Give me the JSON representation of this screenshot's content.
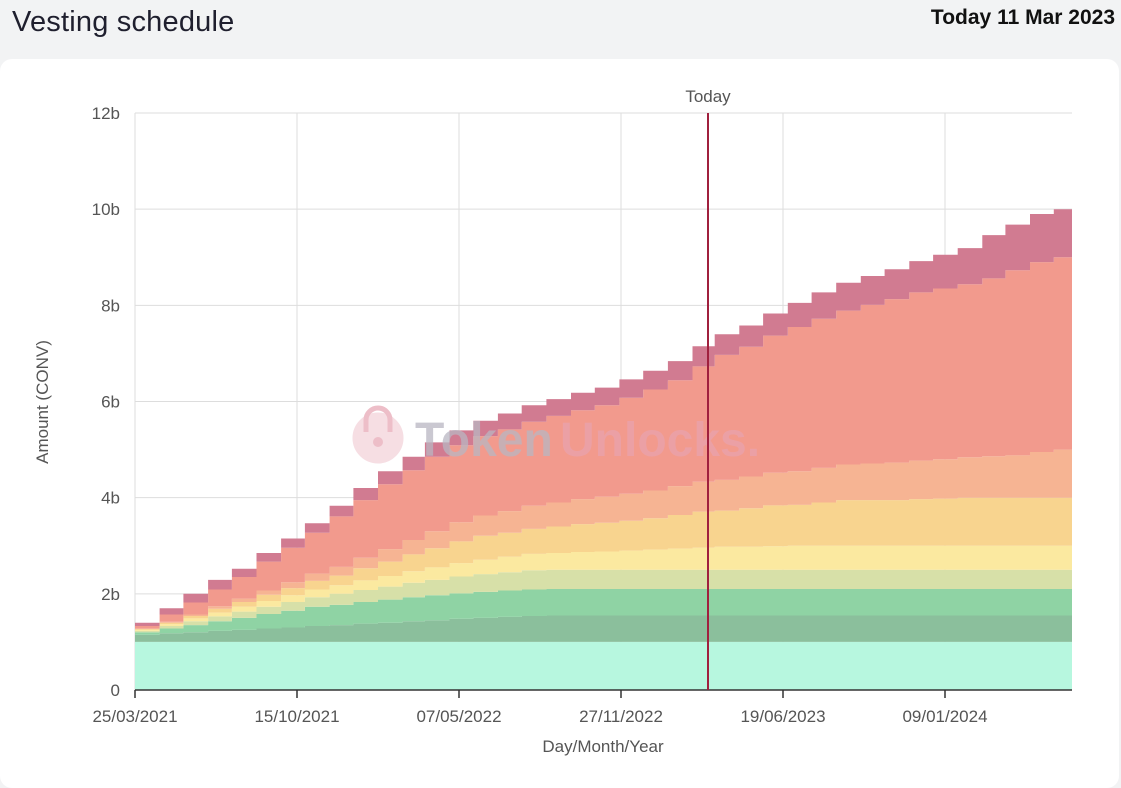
{
  "page": {
    "title": "Vesting schedule",
    "today_prefix": "Today",
    "today_date": "11 Mar 2023"
  },
  "watermark": {
    "part1": "Token",
    "part2": "Unlocks."
  },
  "colors": {
    "series": [
      "#b7f7df",
      "#8bbf9c",
      "#8fd3a4",
      "#d7e0a8",
      "#fbe9a0",
      "#f8d48f",
      "#f6b493",
      "#f29a8d",
      "#d17b91"
    ],
    "today_line": "#a0203e",
    "grid": "#dddddd"
  },
  "chart_data": {
    "type": "area",
    "title": "",
    "xlabel": "Day/Month/Year",
    "ylabel": "Amount (CONV)",
    "ylim": [
      0,
      12
    ],
    "yunit": "b",
    "y_ticks": [
      "0",
      "2b",
      "4b",
      "6b",
      "8b",
      "10b",
      "12b"
    ],
    "x_ticks": [
      "25/03/2021",
      "15/10/2021",
      "07/05/2022",
      "27/11/2022",
      "19/06/2023",
      "09/01/2024"
    ],
    "today_label": "Today",
    "today_date": "11/03/2023",
    "stacked": true,
    "step": true,
    "grid": true,
    "x": [
      "25/03/2021",
      "25/04/2021",
      "25/05/2021",
      "25/06/2021",
      "25/07/2021",
      "25/08/2021",
      "25/09/2021",
      "25/10/2021",
      "25/11/2021",
      "25/12/2021",
      "25/01/2022",
      "25/02/2022",
      "25/03/2022",
      "25/04/2022",
      "25/05/2022",
      "25/06/2022",
      "25/07/2022",
      "25/08/2022",
      "25/09/2022",
      "25/10/2022",
      "25/11/2022",
      "25/12/2022",
      "25/01/2023",
      "25/02/2023",
      "25/03/2023",
      "25/04/2023",
      "25/05/2023",
      "25/06/2023",
      "25/07/2023",
      "25/08/2023",
      "25/09/2023",
      "25/10/2023",
      "25/11/2023",
      "25/12/2023",
      "25/01/2024",
      "25/02/2024",
      "25/03/2024",
      "25/04/2024",
      "25/05/2024",
      "25/06/2024"
    ],
    "series": [
      {
        "values": [
          1.0,
          1.0,
          1.0,
          1.0,
          1.0,
          1.0,
          1.0,
          1.0,
          1.0,
          1.0,
          1.0,
          1.0,
          1.0,
          1.0,
          1.0,
          1.0,
          1.0,
          1.0,
          1.0,
          1.0,
          1.0,
          1.0,
          1.0,
          1.0,
          1.0,
          1.0,
          1.0,
          1.0,
          1.0,
          1.0,
          1.0,
          1.0,
          1.0,
          1.0,
          1.0,
          1.0,
          1.0,
          1.0,
          1.0,
          1.0
        ]
      },
      {
        "values": [
          0.15,
          0.18,
          0.2,
          0.23,
          0.25,
          0.28,
          0.3,
          0.33,
          0.35,
          0.38,
          0.4,
          0.43,
          0.45,
          0.48,
          0.5,
          0.52,
          0.54,
          0.55,
          0.55,
          0.55,
          0.55,
          0.55,
          0.55,
          0.55,
          0.55,
          0.55,
          0.55,
          0.55,
          0.55,
          0.55,
          0.55,
          0.55,
          0.55,
          0.55,
          0.55,
          0.55,
          0.55,
          0.55,
          0.55,
          0.55
        ]
      },
      {
        "values": [
          0.05,
          0.1,
          0.15,
          0.2,
          0.25,
          0.3,
          0.35,
          0.4,
          0.42,
          0.45,
          0.48,
          0.5,
          0.52,
          0.53,
          0.54,
          0.55,
          0.55,
          0.55,
          0.55,
          0.55,
          0.55,
          0.55,
          0.55,
          0.55,
          0.55,
          0.55,
          0.55,
          0.55,
          0.55,
          0.55,
          0.55,
          0.55,
          0.55,
          0.55,
          0.55,
          0.55,
          0.55,
          0.55,
          0.55,
          0.55
        ]
      },
      {
        "values": [
          0.03,
          0.05,
          0.08,
          0.1,
          0.13,
          0.15,
          0.18,
          0.2,
          0.23,
          0.25,
          0.27,
          0.3,
          0.32,
          0.35,
          0.37,
          0.38,
          0.4,
          0.4,
          0.4,
          0.4,
          0.4,
          0.4,
          0.4,
          0.4,
          0.4,
          0.4,
          0.4,
          0.4,
          0.4,
          0.4,
          0.4,
          0.4,
          0.4,
          0.4,
          0.4,
          0.4,
          0.4,
          0.4,
          0.4,
          0.4
        ]
      },
      {
        "values": [
          0.02,
          0.04,
          0.06,
          0.08,
          0.1,
          0.12,
          0.14,
          0.16,
          0.18,
          0.2,
          0.22,
          0.24,
          0.26,
          0.28,
          0.3,
          0.32,
          0.34,
          0.35,
          0.37,
          0.38,
          0.4,
          0.42,
          0.44,
          0.46,
          0.48,
          0.48,
          0.49,
          0.5,
          0.5,
          0.5,
          0.5,
          0.5,
          0.5,
          0.5,
          0.5,
          0.5,
          0.5,
          0.5,
          0.5,
          0.5
        ]
      },
      {
        "values": [
          0.02,
          0.03,
          0.05,
          0.08,
          0.1,
          0.13,
          0.15,
          0.18,
          0.2,
          0.25,
          0.3,
          0.35,
          0.4,
          0.45,
          0.5,
          0.5,
          0.52,
          0.55,
          0.58,
          0.6,
          0.62,
          0.65,
          0.7,
          0.75,
          0.75,
          0.8,
          0.85,
          0.85,
          0.9,
          0.95,
          0.95,
          0.95,
          0.97,
          0.98,
          1.0,
          1.0,
          1.0,
          1.0,
          1.0,
          1.0
        ]
      },
      {
        "values": [
          0.01,
          0.02,
          0.03,
          0.05,
          0.07,
          0.09,
          0.12,
          0.15,
          0.18,
          0.22,
          0.26,
          0.3,
          0.35,
          0.4,
          0.42,
          0.45,
          0.48,
          0.5,
          0.52,
          0.54,
          0.56,
          0.58,
          0.6,
          0.62,
          0.64,
          0.66,
          0.68,
          0.7,
          0.72,
          0.74,
          0.76,
          0.78,
          0.8,
          0.82,
          0.84,
          0.86,
          0.88,
          0.95,
          1.0,
          1.0
        ]
      },
      {
        "values": [
          0.05,
          0.15,
          0.25,
          0.35,
          0.45,
          0.6,
          0.72,
          0.85,
          1.05,
          1.2,
          1.35,
          1.45,
          1.55,
          1.6,
          1.65,
          1.7,
          1.75,
          1.8,
          1.85,
          1.9,
          2.0,
          2.1,
          2.2,
          2.4,
          2.6,
          2.7,
          2.85,
          3.0,
          3.1,
          3.2,
          3.3,
          3.4,
          3.5,
          3.55,
          3.6,
          3.7,
          3.85,
          3.95,
          4.0,
          4.0
        ]
      },
      {
        "values": [
          0.07,
          0.13,
          0.18,
          0.2,
          0.17,
          0.18,
          0.19,
          0.2,
          0.22,
          0.25,
          0.27,
          0.28,
          0.3,
          0.31,
          0.32,
          0.33,
          0.34,
          0.35,
          0.36,
          0.37,
          0.38,
          0.39,
          0.4,
          0.42,
          0.43,
          0.44,
          0.46,
          0.5,
          0.55,
          0.58,
          0.6,
          0.62,
          0.65,
          0.7,
          0.75,
          0.9,
          0.95,
          1.0,
          1.0,
          1.0
        ]
      }
    ]
  }
}
